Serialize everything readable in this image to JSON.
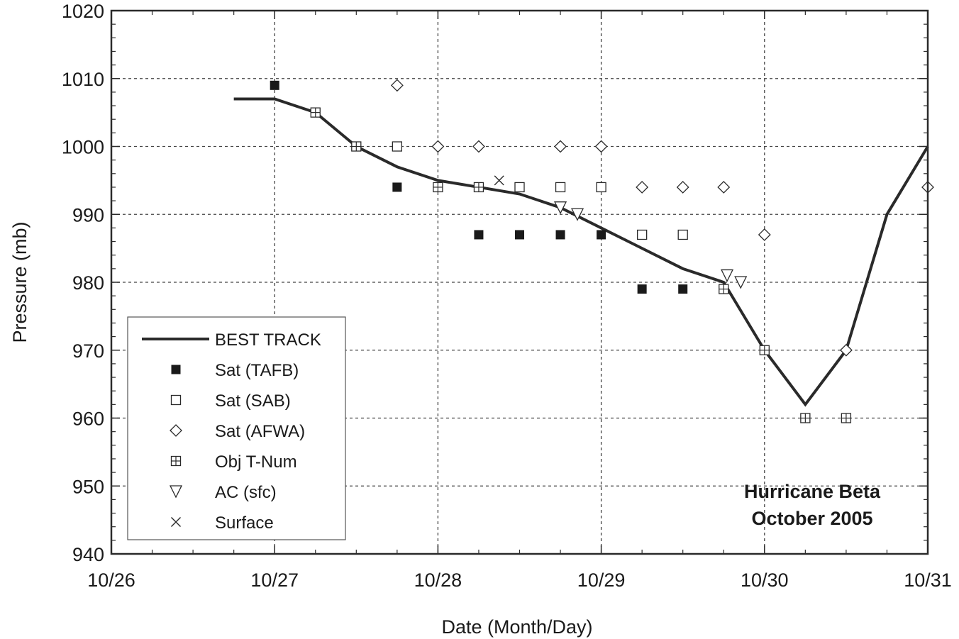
{
  "chart_data": {
    "type": "scatter",
    "xlabel": "Date (Month/Day)",
    "ylabel": "Pressure (mb)",
    "xlim": [
      "2005-10-26 00:00",
      "2005-10-31 00:00"
    ],
    "ylim": [
      940,
      1020
    ],
    "x_tick_labels": [
      "10/26",
      "10/27",
      "10/28",
      "10/29",
      "10/30",
      "10/31"
    ],
    "y_tick_labels": [
      "940",
      "950",
      "960",
      "970",
      "980",
      "990",
      "1000",
      "1010",
      "1020"
    ],
    "grid": true,
    "legend_position": "bottom-left",
    "annotation": [
      "Hurricane Beta",
      "October 2005"
    ],
    "series": [
      {
        "name": "BEST TRACK",
        "mark": "line",
        "color": "#2a2a2a",
        "x": [
          "2005-10-26 18:00",
          "2005-10-27 00:00",
          "2005-10-27 06:00",
          "2005-10-27 12:00",
          "2005-10-27 18:00",
          "2005-10-28 00:00",
          "2005-10-28 06:00",
          "2005-10-28 12:00",
          "2005-10-28 18:00",
          "2005-10-29 00:00",
          "2005-10-29 06:00",
          "2005-10-29 12:00",
          "2005-10-29 18:00",
          "2005-10-30 00:00",
          "2005-10-30 06:00",
          "2005-10-30 12:00",
          "2005-10-30 18:00",
          "2005-10-31 00:00"
        ],
        "y": [
          1007,
          1007,
          1005,
          1000,
          997,
          995,
          994,
          993,
          991,
          988,
          985,
          982,
          980,
          970,
          962,
          970,
          990,
          1000
        ]
      },
      {
        "name": "Sat (TAFB)",
        "mark": "filled-square",
        "x": [
          "2005-10-27 00:00",
          "2005-10-27 18:00",
          "2005-10-28 00:00",
          "2005-10-28 06:00",
          "2005-10-28 12:00",
          "2005-10-28 18:00",
          "2005-10-29 00:00",
          "2005-10-29 06:00",
          "2005-10-29 12:00",
          "2005-10-30 06:00",
          "2005-10-30 12:00"
        ],
        "y": [
          1009,
          994,
          994,
          987,
          987,
          987,
          987,
          979,
          979,
          960,
          960
        ]
      },
      {
        "name": "Sat (SAB)",
        "mark": "open-square",
        "x": [
          "2005-10-27 18:00",
          "2005-10-28 12:00",
          "2005-10-28 18:00",
          "2005-10-29 00:00",
          "2005-10-29 06:00",
          "2005-10-29 12:00"
        ],
        "y": [
          1000,
          994,
          994,
          994,
          987,
          987
        ]
      },
      {
        "name": "Sat (AFWA)",
        "mark": "diamond",
        "x": [
          "2005-10-27 18:00",
          "2005-10-28 00:00",
          "2005-10-28 06:00",
          "2005-10-28 18:00",
          "2005-10-29 00:00",
          "2005-10-29 06:00",
          "2005-10-29 12:00",
          "2005-10-29 18:00",
          "2005-10-30 00:00",
          "2005-10-30 12:00",
          "2005-10-31 00:00"
        ],
        "y": [
          1009,
          1000,
          1000,
          1000,
          1000,
          994,
          994,
          994,
          987,
          970,
          994
        ]
      },
      {
        "name": "Obj T-Num",
        "mark": "crossed-square",
        "x": [
          "2005-10-27 06:00",
          "2005-10-27 12:00",
          "2005-10-28 00:00",
          "2005-10-28 06:00",
          "2005-10-29 18:00",
          "2005-10-30 00:00",
          "2005-10-30 06:00",
          "2005-10-30 12:00"
        ],
        "y": [
          1005,
          1000,
          994,
          994,
          979,
          970,
          960,
          960
        ]
      },
      {
        "name": "AC (sfc)",
        "mark": "triangle-down",
        "x": [
          "2005-10-28 18:00",
          "2005-10-28 20:30",
          "2005-10-29 18:30",
          "2005-10-29 20:30"
        ],
        "y": [
          991,
          990,
          981,
          980
        ]
      },
      {
        "name": "Surface",
        "mark": "x",
        "x": [
          "2005-10-28 09:00"
        ],
        "y": [
          995
        ]
      }
    ]
  }
}
